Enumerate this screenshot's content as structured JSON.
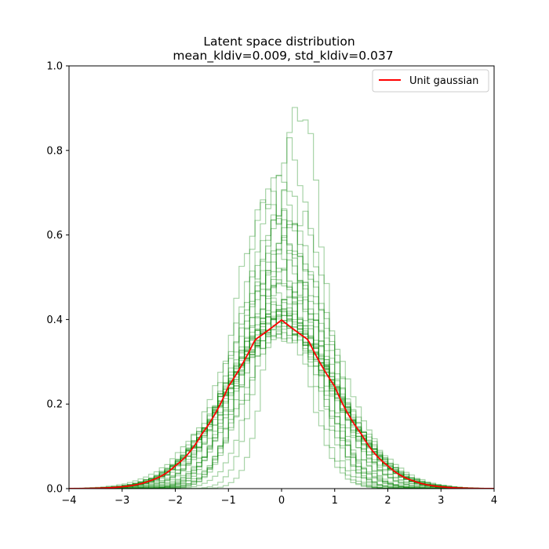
{
  "chart_data": {
    "type": "line",
    "title": "Latent space distribution",
    "subtitle": "mean_kldiv=0.009, std_kldiv=0.037",
    "xlabel": "",
    "ylabel": "",
    "xlim": [
      -4,
      4
    ],
    "ylim": [
      0,
      1.0
    ],
    "xticks": [
      -4,
      -3,
      -2,
      -1,
      0,
      1,
      2,
      3,
      4
    ],
    "xtick_labels": [
      "−4",
      "−3",
      "−2",
      "−1",
      "0",
      "1",
      "2",
      "3",
      "4"
    ],
    "yticks": [
      0.0,
      0.2,
      0.4,
      0.6,
      0.8,
      1.0
    ],
    "ytick_labels": [
      "0.0",
      "0.2",
      "0.4",
      "0.6",
      "0.8",
      "1.0"
    ],
    "grid": false,
    "legend": {
      "placement": "top-right",
      "entries": [
        "Unit gaussian"
      ]
    },
    "colors": {
      "histograms": "#008000",
      "gaussian": "#ff0000"
    },
    "reference_curve": {
      "name": "Unit gaussian",
      "x": [
        -4.0,
        -3.5,
        -3.0,
        -2.5,
        -2.0,
        -1.5,
        -1.0,
        -0.5,
        0.0,
        0.5,
        1.0,
        1.5,
        2.0,
        2.5,
        3.0,
        3.5,
        4.0
      ],
      "y": [
        0.0001,
        0.0009,
        0.0044,
        0.0175,
        0.054,
        0.1295,
        0.242,
        0.352,
        0.3989,
        0.352,
        0.242,
        0.1295,
        0.054,
        0.0175,
        0.0044,
        0.0009,
        0.0001
      ]
    },
    "histogram_series": [
      {
        "mean": 0.35,
        "std": 0.45,
        "peak": 0.89
      },
      {
        "mean": 0.2,
        "std": 0.48,
        "peak": 0.8
      },
      {
        "mean": -0.05,
        "std": 0.55,
        "peak": 0.73
      },
      {
        "mean": -0.2,
        "std": 0.58,
        "peak": 0.7
      },
      {
        "mean": 0.1,
        "std": 0.6,
        "peak": 0.7
      },
      {
        "mean": -0.3,
        "std": 0.6,
        "peak": 0.66
      },
      {
        "mean": 0.05,
        "std": 0.62,
        "peak": 0.65
      },
      {
        "mean": 0.3,
        "std": 0.62,
        "peak": 0.64
      },
      {
        "mean": -0.1,
        "std": 0.65,
        "peak": 0.62
      },
      {
        "mean": 0.15,
        "std": 0.68,
        "peak": 0.6
      },
      {
        "mean": 0.0,
        "std": 0.7,
        "peak": 0.57
      },
      {
        "mean": -0.2,
        "std": 0.72,
        "peak": 0.55
      },
      {
        "mean": 0.25,
        "std": 0.72,
        "peak": 0.55
      },
      {
        "mean": 0.05,
        "std": 0.75,
        "peak": 0.53
      },
      {
        "mean": -0.15,
        "std": 0.78,
        "peak": 0.51
      },
      {
        "mean": 0.1,
        "std": 0.8,
        "peak": 0.5
      },
      {
        "mean": 0.35,
        "std": 0.82,
        "peak": 0.48
      },
      {
        "mean": 0.0,
        "std": 0.85,
        "peak": 0.47
      },
      {
        "mean": -0.25,
        "std": 0.85,
        "peak": 0.47
      },
      {
        "mean": 0.2,
        "std": 0.88,
        "peak": 0.45
      },
      {
        "mean": 0.0,
        "std": 0.9,
        "peak": 0.44
      },
      {
        "mean": 0.1,
        "std": 0.92,
        "peak": 0.43
      },
      {
        "mean": -0.05,
        "std": 0.94,
        "peak": 0.42
      },
      {
        "mean": 0.05,
        "std": 0.96,
        "peak": 0.41
      },
      {
        "mean": 0.0,
        "std": 0.97,
        "peak": 0.41
      },
      {
        "mean": -0.03,
        "std": 0.98,
        "peak": 0.405
      },
      {
        "mean": 0.03,
        "std": 0.99,
        "peak": 0.4
      },
      {
        "mean": 0.0,
        "std": 1.0,
        "peak": 0.4
      },
      {
        "mean": -0.02,
        "std": 1.01,
        "peak": 0.395
      },
      {
        "mean": 0.02,
        "std": 1.02,
        "peak": 0.39
      },
      {
        "mean": 0.0,
        "std": 1.03,
        "peak": 0.385
      },
      {
        "mean": -0.04,
        "std": 1.04,
        "peak": 0.38
      },
      {
        "mean": 0.04,
        "std": 1.05,
        "peak": 0.375
      },
      {
        "mean": 0.0,
        "std": 1.06,
        "peak": 0.37
      },
      {
        "mean": 0.06,
        "std": 1.08,
        "peak": 0.365
      },
      {
        "mean": -0.06,
        "std": 1.1,
        "peak": 0.36
      }
    ]
  }
}
